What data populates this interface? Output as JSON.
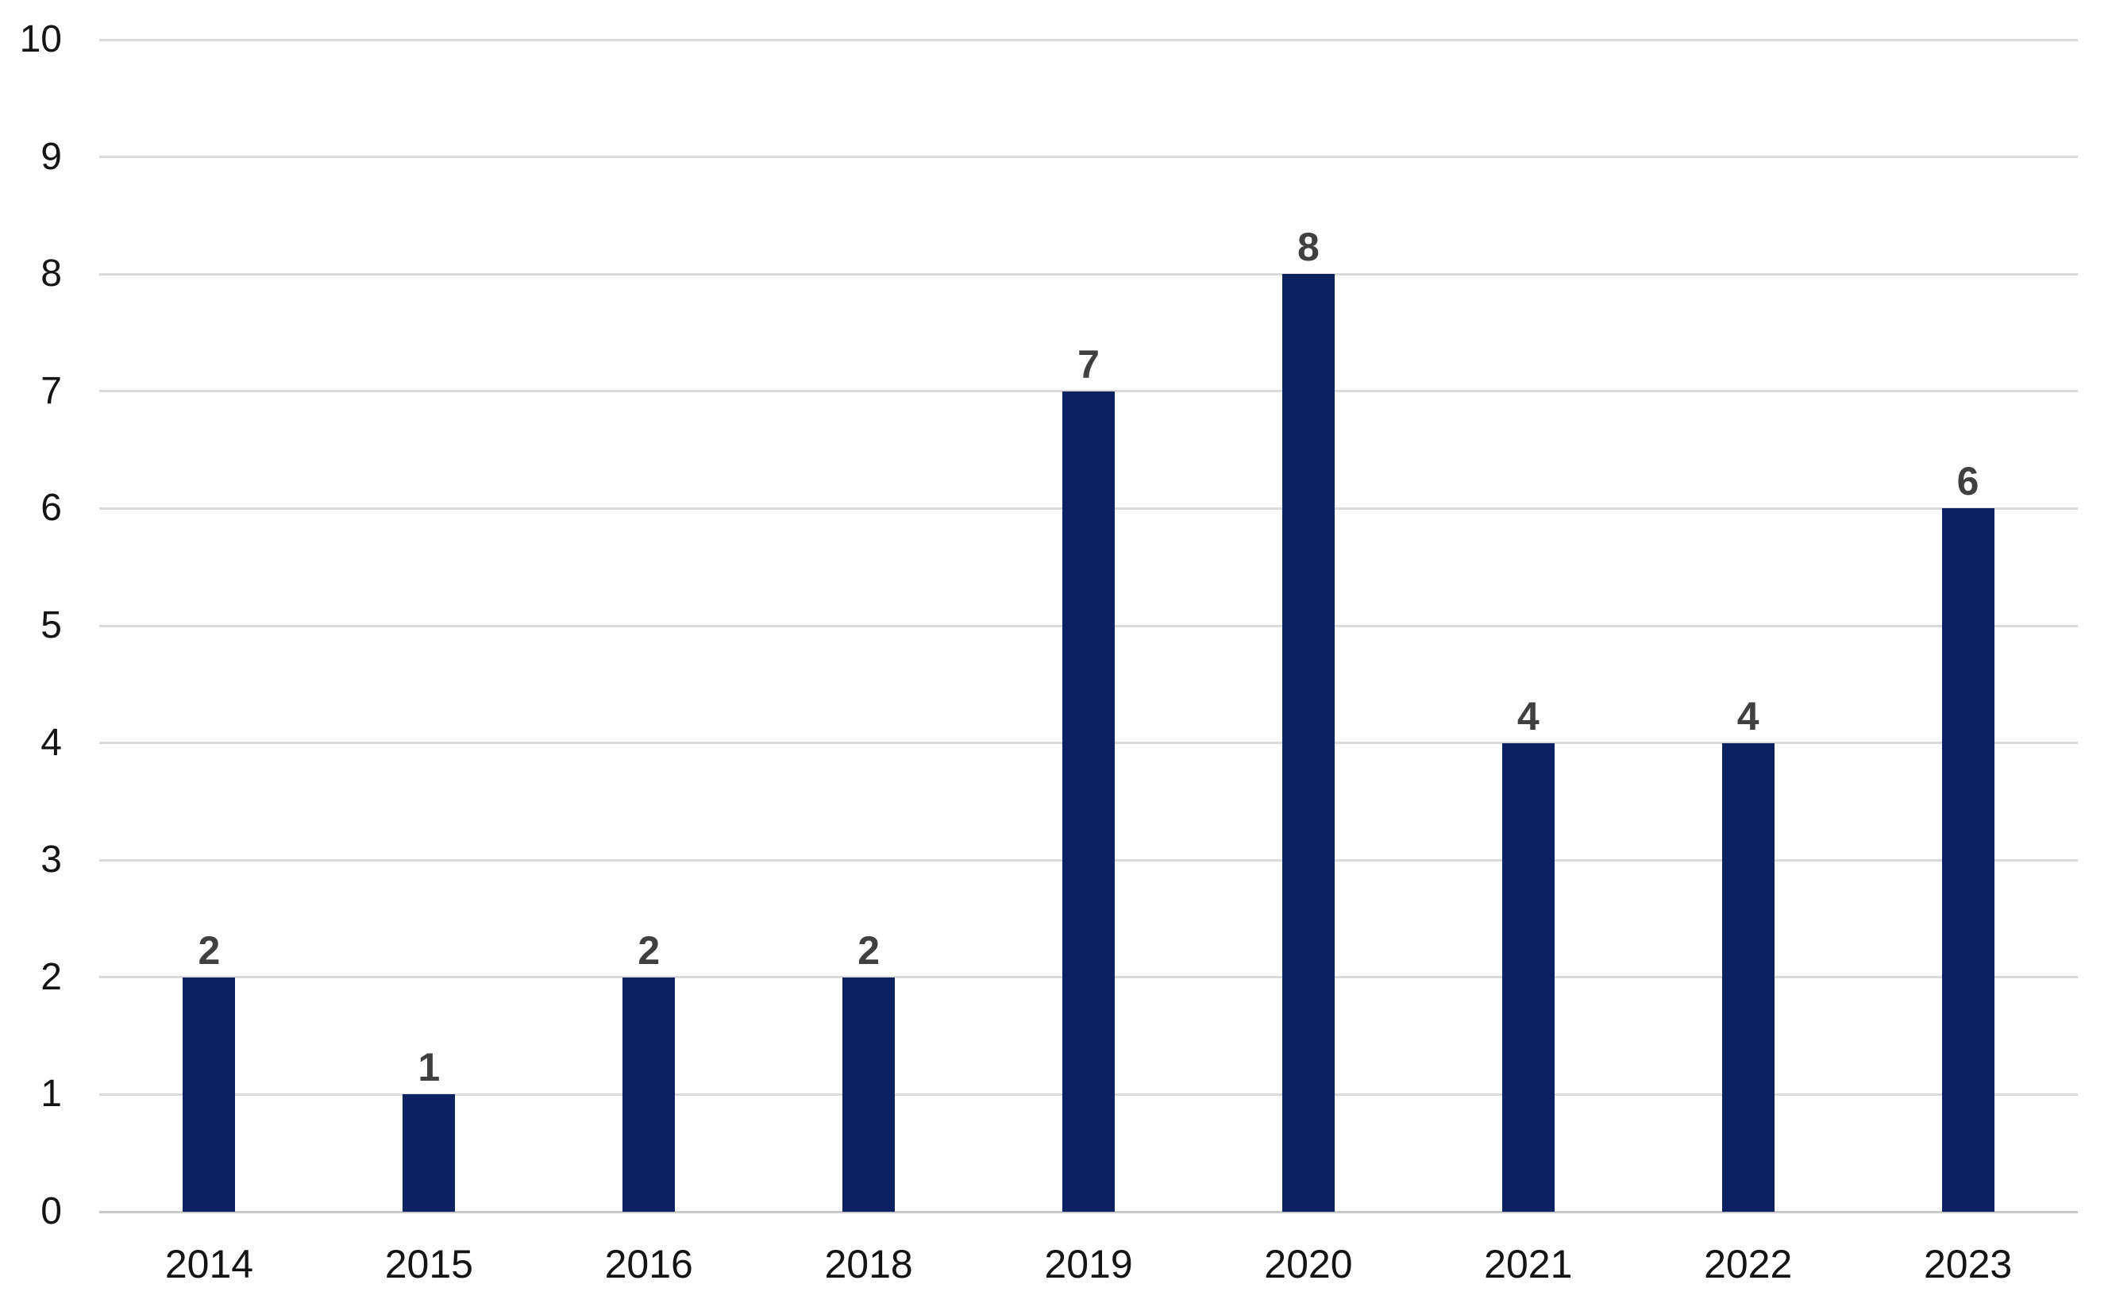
{
  "chart_data": {
    "type": "bar",
    "categories": [
      "2014",
      "2015",
      "2016",
      "2018",
      "2019",
      "2020",
      "2021",
      "2022",
      "2023"
    ],
    "values": [
      2,
      1,
      2,
      2,
      7,
      8,
      4,
      4,
      6
    ],
    "title": "",
    "xlabel": "",
    "ylabel": "",
    "ylim": [
      0,
      10
    ],
    "ytick_step": 1,
    "yticks": [
      0,
      1,
      2,
      3,
      4,
      5,
      6,
      7,
      8,
      9,
      10
    ],
    "grid": true,
    "legend": "none",
    "data_labels_shown": true,
    "colors": {
      "bar": "#0b2161",
      "gridline": "#dadada",
      "axis_line": "#c9c9c9",
      "tick_label": "#141414",
      "data_label": "#404040",
      "background": "#ffffff"
    }
  }
}
